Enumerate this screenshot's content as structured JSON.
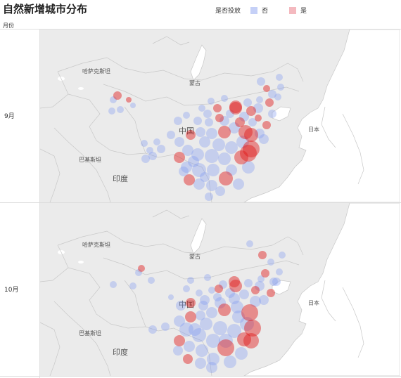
{
  "title": "自然新增城市分布",
  "legend": {
    "title": "是否投放",
    "items": [
      {
        "label": "否",
        "color": "#a9b9f5"
      },
      {
        "label": "是",
        "color": "#f2a3ac"
      }
    ]
  },
  "row_header": "月份",
  "map_labels": {
    "kazakhstan": "哈萨克斯坦",
    "mongolia": "蒙古",
    "china": "中国",
    "japan": "日本",
    "pakistan": "巴基斯坦",
    "india": "印度"
  },
  "panels": [
    {
      "month": "9月"
    },
    {
      "month": "10月"
    }
  ],
  "colors": {
    "not_placed": "#7f97f0",
    "placed": "#e01818",
    "land": "#ebebeb",
    "water": "#ffffff",
    "border": "#c8c8c8"
  }
}
